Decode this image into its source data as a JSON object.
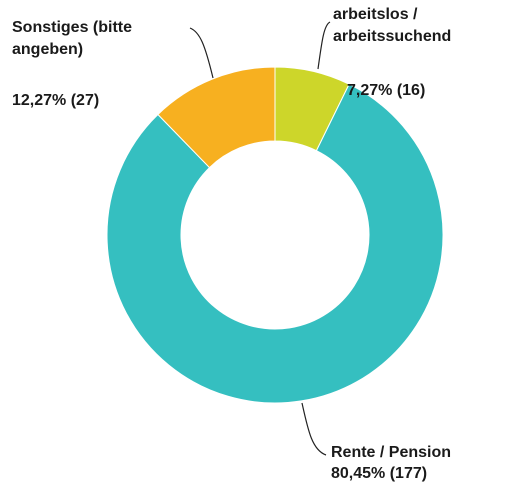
{
  "chart_data": {
    "type": "donut",
    "categories": [
      "arbeitslos / arbeitssuchend",
      "Rente / Pension",
      "Sonstiges (bitte angeben)"
    ],
    "values": [
      7.27,
      80.45,
      12.27
    ],
    "value_labels": [
      "7,27% (16)",
      "80,45% (177)",
      "12,27% (27)"
    ],
    "colors": [
      "#cdd62a",
      "#35bfc0",
      "#f7b020"
    ]
  }
}
